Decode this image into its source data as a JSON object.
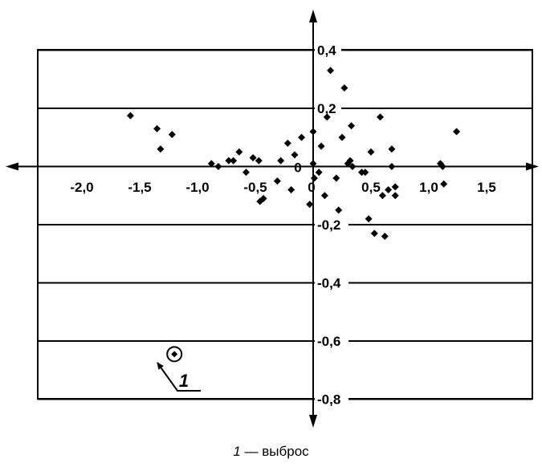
{
  "chart_data": {
    "type": "scatter",
    "title": "",
    "xlabel": "",
    "ylabel": "",
    "xlim": [
      -2.0,
      1.5
    ],
    "ylim": [
      -0.8,
      0.4
    ],
    "x_ticks": [
      -2.0,
      -1.5,
      -1.0,
      -0.5,
      0,
      0.5,
      1.0,
      1.5
    ],
    "x_tick_labels": [
      "-2,0",
      "-1,5",
      "-1,0",
      "-0,5",
      "0",
      "0,5",
      "1,0",
      "1,5"
    ],
    "y_ticks": [
      0.4,
      0.2,
      0,
      -0.2,
      -0.4,
      -0.6,
      -0.8
    ],
    "y_tick_labels": [
      "0,4",
      "0,2",
      "0",
      "-0,2",
      "-0,4",
      "-0,6",
      "-0,8"
    ],
    "grid": "horizontal",
    "points": [
      {
        "x": -1.58,
        "y": 0.175
      },
      {
        "x": -1.35,
        "y": 0.13
      },
      {
        "x": -1.32,
        "y": 0.06
      },
      {
        "x": -1.22,
        "y": 0.11
      },
      {
        "x": -0.88,
        "y": 0.01
      },
      {
        "x": -0.82,
        "y": 0.0
      },
      {
        "x": -0.73,
        "y": 0.02
      },
      {
        "x": -0.69,
        "y": 0.02
      },
      {
        "x": -0.64,
        "y": 0.05
      },
      {
        "x": -0.58,
        "y": -0.02
      },
      {
        "x": -0.52,
        "y": 0.03
      },
      {
        "x": -0.47,
        "y": 0.02
      },
      {
        "x": -0.46,
        "y": -0.12
      },
      {
        "x": -0.43,
        "y": -0.11
      },
      {
        "x": -0.31,
        "y": -0.05
      },
      {
        "x": -0.28,
        "y": 0.02
      },
      {
        "x": -0.22,
        "y": 0.08
      },
      {
        "x": -0.19,
        "y": -0.08
      },
      {
        "x": -0.16,
        "y": 0.04
      },
      {
        "x": -0.1,
        "y": 0.1
      },
      {
        "x": -0.03,
        "y": -0.13
      },
      {
        "x": 0.0,
        "y": 0.12
      },
      {
        "x": 0.0,
        "y": 0.01
      },
      {
        "x": 0.01,
        "y": -0.04
      },
      {
        "x": 0.05,
        "y": -0.02
      },
      {
        "x": 0.07,
        "y": 0.07
      },
      {
        "x": 0.1,
        "y": -0.1
      },
      {
        "x": 0.12,
        "y": 0.17
      },
      {
        "x": 0.15,
        "y": 0.33
      },
      {
        "x": 0.2,
        "y": -0.04
      },
      {
        "x": 0.22,
        "y": -0.15
      },
      {
        "x": 0.25,
        "y": 0.1
      },
      {
        "x": 0.27,
        "y": 0.27
      },
      {
        "x": 0.3,
        "y": 0.01
      },
      {
        "x": 0.32,
        "y": 0.02
      },
      {
        "x": 0.33,
        "y": 0.14
      },
      {
        "x": 0.34,
        "y": 0.0
      },
      {
        "x": 0.42,
        "y": -0.02
      },
      {
        "x": 0.45,
        "y": -0.02
      },
      {
        "x": 0.48,
        "y": -0.18
      },
      {
        "x": 0.5,
        "y": 0.05
      },
      {
        "x": 0.53,
        "y": -0.23
      },
      {
        "x": 0.58,
        "y": 0.17
      },
      {
        "x": 0.6,
        "y": -0.1
      },
      {
        "x": 0.62,
        "y": -0.24
      },
      {
        "x": 0.65,
        "y": -0.08
      },
      {
        "x": 0.68,
        "y": 0.06
      },
      {
        "x": 0.68,
        "y": 0.0
      },
      {
        "x": 0.71,
        "y": -0.1
      },
      {
        "x": 0.71,
        "y": -0.07
      },
      {
        "x": 1.1,
        "y": 0.01
      },
      {
        "x": 1.12,
        "y": 0.0
      },
      {
        "x": 1.13,
        "y": -0.06
      },
      {
        "x": 1.24,
        "y": 0.12
      }
    ],
    "outlier": {
      "x": -1.2,
      "y": -0.645,
      "label": "1"
    }
  },
  "caption": {
    "number": "1",
    "text": " — выброс"
  }
}
